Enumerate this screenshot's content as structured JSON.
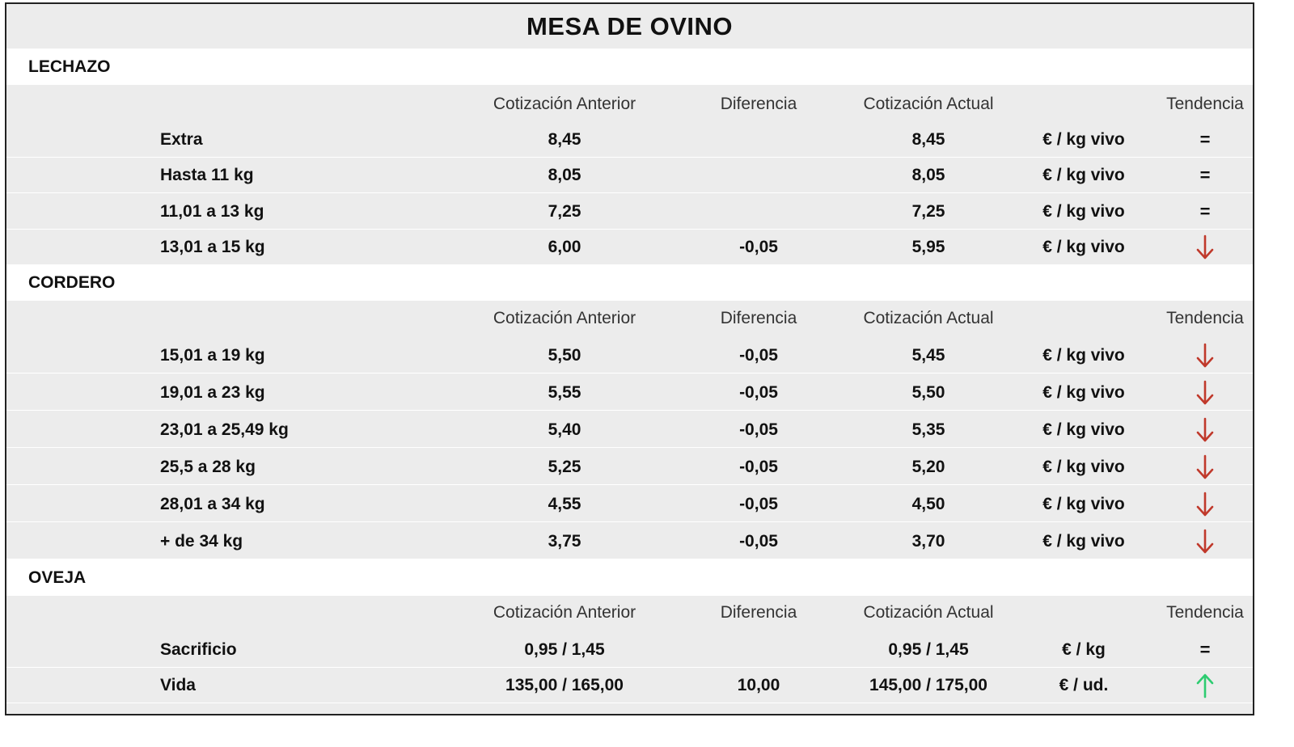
{
  "title": "MESA DE OVINO",
  "headers": {
    "anterior": "Cotización Anterior",
    "diferencia": "Diferencia",
    "actual": "Cotización Actual",
    "tendencia": "Tendencia"
  },
  "colors": {
    "down": "#c0392b",
    "up": "#2ecc71"
  },
  "sections": [
    {
      "name": "LECHAZO",
      "rows": [
        {
          "label": "Extra",
          "anterior": "8,45",
          "diferencia": "",
          "actual": "8,45",
          "unit": "€ / kg vivo",
          "trend": "equal",
          "trend_text": "="
        },
        {
          "label": "Hasta 11 kg",
          "anterior": "8,05",
          "diferencia": "",
          "actual": "8,05",
          "unit": "€ / kg vivo",
          "trend": "equal",
          "trend_text": "="
        },
        {
          "label": "11,01 a 13 kg",
          "anterior": "7,25",
          "diferencia": "",
          "actual": "7,25",
          "unit": "€ / kg vivo",
          "trend": "equal",
          "trend_text": "="
        },
        {
          "label": "13,01 a 15 kg",
          "anterior": "6,00",
          "diferencia": "-0,05",
          "actual": "5,95",
          "unit": "€ / kg vivo",
          "trend": "down",
          "trend_text": ""
        }
      ]
    },
    {
      "name": "CORDERO",
      "rows": [
        {
          "label": "15,01 a 19 kg",
          "anterior": "5,50",
          "diferencia": "-0,05",
          "actual": "5,45",
          "unit": "€ / kg vivo",
          "trend": "down",
          "trend_text": ""
        },
        {
          "label": "19,01 a 23 kg",
          "anterior": "5,55",
          "diferencia": "-0,05",
          "actual": "5,50",
          "unit": "€ / kg vivo",
          "trend": "down",
          "trend_text": ""
        },
        {
          "label": "23,01 a 25,49 kg",
          "anterior": "5,40",
          "diferencia": "-0,05",
          "actual": "5,35",
          "unit": "€ / kg vivo",
          "trend": "down",
          "trend_text": ""
        },
        {
          "label": "25,5 a 28 kg",
          "anterior": "5,25",
          "diferencia": "-0,05",
          "actual": "5,20",
          "unit": "€ / kg vivo",
          "trend": "down",
          "trend_text": ""
        },
        {
          "label": "28,01 a 34 kg",
          "anterior": "4,55",
          "diferencia": "-0,05",
          "actual": "4,50",
          "unit": "€ / kg vivo",
          "trend": "down",
          "trend_text": ""
        },
        {
          "label": "+ de 34 kg",
          "anterior": "3,75",
          "diferencia": "-0,05",
          "actual": "3,70",
          "unit": "€ / kg vivo",
          "trend": "down",
          "trend_text": ""
        }
      ]
    },
    {
      "name": "OVEJA",
      "rows": [
        {
          "label": "Sacrificio",
          "anterior": "0,95 / 1,45",
          "diferencia": "",
          "actual": "0,95 / 1,45",
          "unit": "€ / kg",
          "trend": "equal",
          "trend_text": "="
        },
        {
          "label": "Vida",
          "anterior": "135,00 / 165,00",
          "diferencia": "10,00",
          "actual": "145,00 / 175,00",
          "unit": "€ / ud.",
          "trend": "up",
          "trend_text": ""
        }
      ]
    }
  ]
}
